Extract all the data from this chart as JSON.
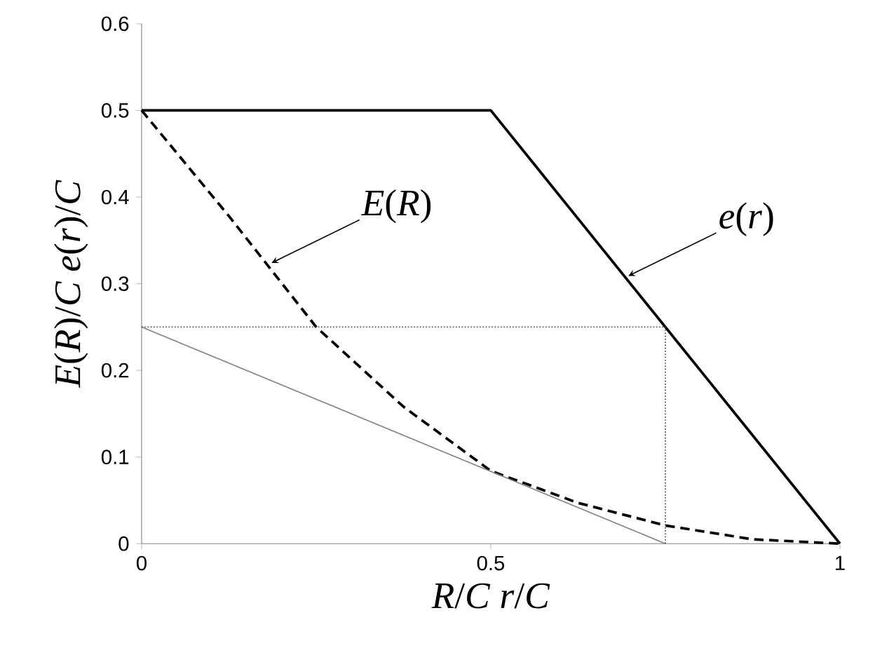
{
  "chart_data": {
    "type": "line",
    "xlabel": "*R*/*C*   *r*/*C*",
    "ylabel": "*E*(*R*)/*C*      *e*(*r*)/*C*",
    "series": [
      {
        "color": "#000000",
        "line_style": "solid",
        "x": [
          0,
          0.5,
          1
        ],
        "values": [
          0.5,
          0.5,
          0
        ]
      },
      {
        "color": "#000000",
        "line_style": "dashed",
        "x": [
          0,
          0.125,
          0.25,
          0.375,
          0.5,
          0.625,
          0.75,
          0.875,
          1
        ],
        "values": [
          0.5,
          0.378,
          0.25,
          0.158,
          0.084,
          0.047,
          0.021,
          0.005,
          0
        ]
      },
      {
        "color": "#808080",
        "line_style": "solid",
        "x": [
          0,
          0.75
        ],
        "values": [
          0.25,
          0
        ]
      },
      {
        "color": "#404040",
        "line_style": "dotted",
        "x": [
          0,
          0.75,
          0.75
        ],
        "values": [
          0.25,
          0.25,
          0
        ]
      }
    ],
    "annotations": [
      {
        "text": "*E*(*R*)",
        "x": 0.186,
        "y": 0.324
      },
      {
        "text": "*e*(*r*)",
        "x": 0.697,
        "y": 0.309
      }
    ],
    "xlim": [
      0,
      1
    ],
    "ylim": [
      0,
      0.6
    ],
    "xticks": [
      0,
      0.5,
      1
    ],
    "yticks": [
      0,
      0.1,
      0.2,
      0.3,
      0.4,
      0.5,
      0.6
    ]
  }
}
